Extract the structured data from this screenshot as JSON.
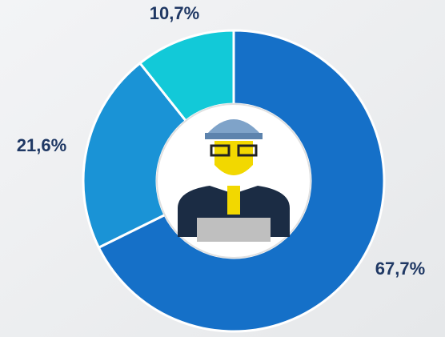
{
  "chart_data": {
    "type": "donut",
    "values": [
      67.7,
      21.6,
      10.7
    ],
    "value_labels": [
      "67,7%",
      "21,6%",
      "10,7%"
    ],
    "colors": [
      "#1570c8",
      "#1a93d6",
      "#12c9d8"
    ]
  }
}
